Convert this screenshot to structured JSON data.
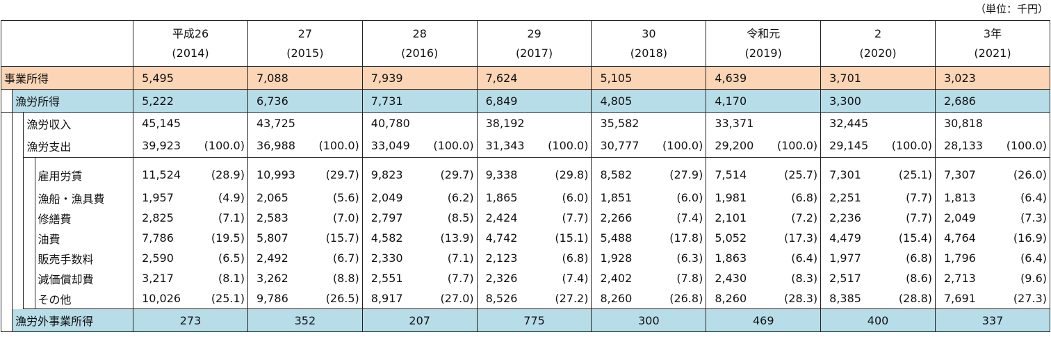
{
  "unit_label": "（単位：千円）",
  "years": [
    {
      "label": "平成26",
      "sub": "(2014)"
    },
    {
      "label": "27",
      "sub": "(2015)"
    },
    {
      "label": "28",
      "sub": "(2016)"
    },
    {
      "label": "29",
      "sub": "(2017)"
    },
    {
      "label": "30",
      "sub": "(2018)"
    },
    {
      "label": "令和元",
      "sub": "(2019)"
    },
    {
      "label": "2",
      "sub": "(2020)"
    },
    {
      "label": "3年",
      "sub": "(2021)"
    }
  ],
  "rows": {
    "jigyo": {
      "label": "事業所得",
      "values": [
        "5,495",
        "7,088",
        "7,939",
        "7,624",
        "5,105",
        "4,639",
        "3,701",
        "3,023"
      ]
    },
    "gyoro": {
      "label": "漁労所得",
      "values": [
        "5,222",
        "6,736",
        "7,731",
        "6,849",
        "4,805",
        "4,170",
        "3,300",
        "2,686"
      ]
    },
    "shunyu": {
      "label": "漁労収入",
      "values": [
        "45,145",
        "43,725",
        "40,780",
        "38,192",
        "35,582",
        "33,371",
        "32,445",
        "30,818"
      ]
    },
    "shishutsu": {
      "label": "漁労支出",
      "values": [
        "39,923",
        "36,988",
        "33,049",
        "31,343",
        "30,777",
        "29,200",
        "29,145",
        "28,133"
      ],
      "pcts": [
        "(100.0)",
        "(100.0)",
        "(100.0)",
        "(100.0)",
        "(100.0)",
        "(100.0)",
        "(100.0)",
        "(100.0)"
      ]
    },
    "details": [
      {
        "label": "雇用労賃",
        "values": [
          "11,524",
          "10,993",
          "9,823",
          "9,338",
          "8,582",
          "7,514",
          "7,301",
          "7,307"
        ],
        "pcts": [
          "(28.9)",
          "(29.7)",
          "(29.7)",
          "(29.8)",
          "(27.9)",
          "(25.7)",
          "(25.1)",
          "(26.0)"
        ]
      },
      {
        "label": "漁船・漁具費",
        "values": [
          "1,957",
          "2,065",
          "2,049",
          "1,865",
          "1,851",
          "1,981",
          "2,251",
          "1,813"
        ],
        "pcts": [
          "(4.9)",
          "(5.6)",
          "(6.2)",
          "(6.0)",
          "(6.0)",
          "(6.8)",
          "(7.7)",
          "(6.4)"
        ]
      },
      {
        "label": "修繕費",
        "values": [
          "2,825",
          "2,583",
          "2,797",
          "2,424",
          "2,266",
          "2,101",
          "2,236",
          "2,049"
        ],
        "pcts": [
          "(7.1)",
          "(7.0)",
          "(8.5)",
          "(7.7)",
          "(7.4)",
          "(7.2)",
          "(7.7)",
          "(7.3)"
        ]
      },
      {
        "label": "油費",
        "values": [
          "7,786",
          "5,807",
          "4,582",
          "4,742",
          "5,488",
          "5,052",
          "4,479",
          "4,764"
        ],
        "pcts": [
          "(19.5)",
          "(15.7)",
          "(13.9)",
          "(15.1)",
          "(17.8)",
          "(17.3)",
          "(15.4)",
          "(16.9)"
        ]
      },
      {
        "label": "販売手数料",
        "values": [
          "2,590",
          "2,492",
          "2,330",
          "2,123",
          "1,928",
          "1,863",
          "1,977",
          "1,796"
        ],
        "pcts": [
          "(6.5)",
          "(6.7)",
          "(7.1)",
          "(6.8)",
          "(6.3)",
          "(6.4)",
          "(6.8)",
          "(6.4)"
        ]
      },
      {
        "label": "減価償却費",
        "values": [
          "3,217",
          "3,262",
          "2,551",
          "2,326",
          "2,402",
          "2,430",
          "2,517",
          "2,713"
        ],
        "pcts": [
          "(8.1)",
          "(8.8)",
          "(7.7)",
          "(7.4)",
          "(7.8)",
          "(8.3)",
          "(8.6)",
          "(9.6)"
        ]
      },
      {
        "label": "その他",
        "values": [
          "10,026",
          "9,786",
          "8,917",
          "8,526",
          "8,260",
          "8,260",
          "8,385",
          "7,691"
        ],
        "pcts": [
          "(25.1)",
          "(26.5)",
          "(27.0)",
          "(27.2)",
          "(26.8)",
          "(28.3)",
          "(28.8)",
          "(27.3)"
        ]
      }
    ],
    "gyorogai": {
      "label": "漁労外事業所得",
      "values": [
        "273",
        "352",
        "207",
        "775",
        "300",
        "469",
        "400",
        "337"
      ]
    }
  },
  "colors": {
    "jigyo_bg": "#fbd5b5",
    "gyoro_bg": "#b7dde8"
  }
}
